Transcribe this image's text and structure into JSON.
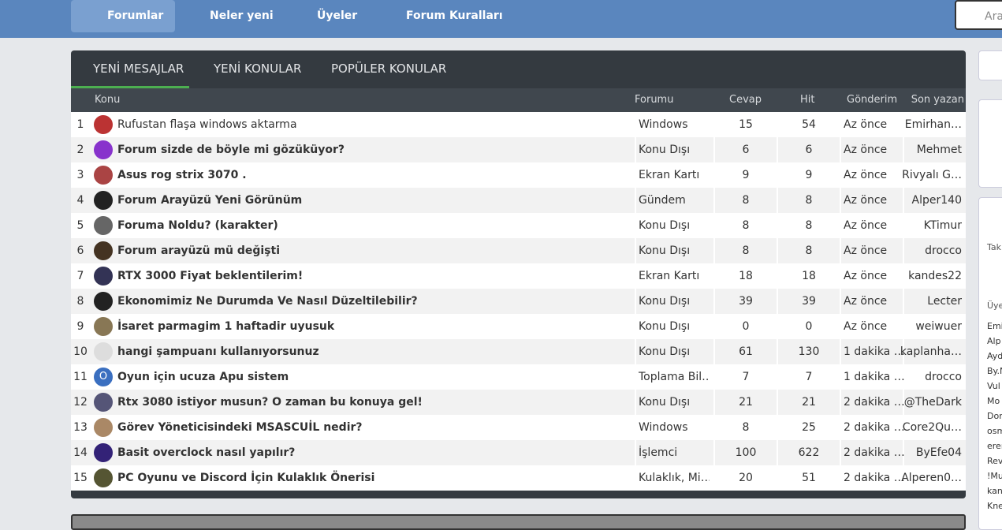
{
  "nav": {
    "items": [
      "Forumlar",
      "Neler yeni",
      "Üyeler",
      "Forum Kuralları"
    ],
    "search_placeholder": "Ara..."
  },
  "tabs": [
    "YENİ MESAJLAR",
    "YENİ KONULAR",
    "POPÜLER KONULAR"
  ],
  "table": {
    "headers": [
      "Konu",
      "Forumu",
      "Cevap",
      "Hit",
      "Gönderim",
      "Son yazan"
    ],
    "rows": [
      [
        1,
        "Rufustan flaşa windows aktarma",
        "Windows",
        15,
        54,
        "Az önce",
        "Emirhan…"
      ],
      [
        2,
        "Forum sizde de böyle mi gözüküyor?",
        "Konu Dışı",
        6,
        6,
        "Az önce",
        "Mehmet"
      ],
      [
        3,
        "Asus rog strix 3070 .",
        "Ekran Kartı",
        9,
        9,
        "Az önce",
        "Rivyalı G…"
      ],
      [
        4,
        "Forum Arayüzü Yeni Görünüm",
        "Gündem",
        8,
        8,
        "Az önce",
        "Alper140"
      ],
      [
        5,
        "Foruma Noldu? (karakter)",
        "Konu Dışı",
        8,
        8,
        "Az önce",
        "KTimur"
      ],
      [
        6,
        "Forum arayüzü mü değişti",
        "Konu Dışı",
        8,
        8,
        "Az önce",
        "drocco"
      ],
      [
        7,
        "RTX 3000 Fiyat beklentilerim!",
        "Ekran Kartı",
        18,
        18,
        "Az önce",
        "kandes22"
      ],
      [
        8,
        "Ekonomimiz Ne Durumda Ve Nasıl Düzeltilebilir?",
        "Konu Dışı",
        39,
        39,
        "Az önce",
        "Lecter"
      ],
      [
        9,
        "İsaret parmagim 1 haftadir uyusuk",
        "Konu Dışı",
        0,
        0,
        "Az önce",
        "weiwuer"
      ],
      [
        10,
        "hangi şampuanı kullanıyorsunuz",
        "Konu Dışı",
        61,
        130,
        "1 dakika …",
        "kaplanha…"
      ],
      [
        11,
        "Oyun için ucuza Apu sistem",
        "Toplama Bil…",
        7,
        7,
        "1 dakika …",
        "drocco"
      ],
      [
        12,
        "Rtx 3080 istiyor musun? O zaman bu konuya gel!",
        "Konu Dışı",
        21,
        21,
        "2 dakika …",
        "@TheDark"
      ],
      [
        13,
        "Görev Yöneticisindeki MSASCUİL nedir?",
        "Windows",
        8,
        25,
        "2 dakika …",
        "Core2Qu…"
      ],
      [
        14,
        "Basit overclock nasıl yapılır?",
        "İşlemci",
        100,
        622,
        "2 dakika …",
        "ByEfe04"
      ],
      [
        15,
        "PC Oyunu ve Discord İçin Kulaklık Önerisi",
        "Kulaklık, Mi…",
        20,
        51,
        "2 dakika …",
        "Alperen0…"
      ]
    ],
    "avatar_letter": "O"
  },
  "sidebar": {
    "label_1": "Tak",
    "label_2": "Üye",
    "names": [
      "Emi",
      "Alp",
      "Ayd",
      "By.N",
      "Vul",
      "Mo",
      "Dor",
      "osm",
      "erer",
      "Rev",
      "!Mu",
      "kan",
      "Kne"
    ]
  }
}
